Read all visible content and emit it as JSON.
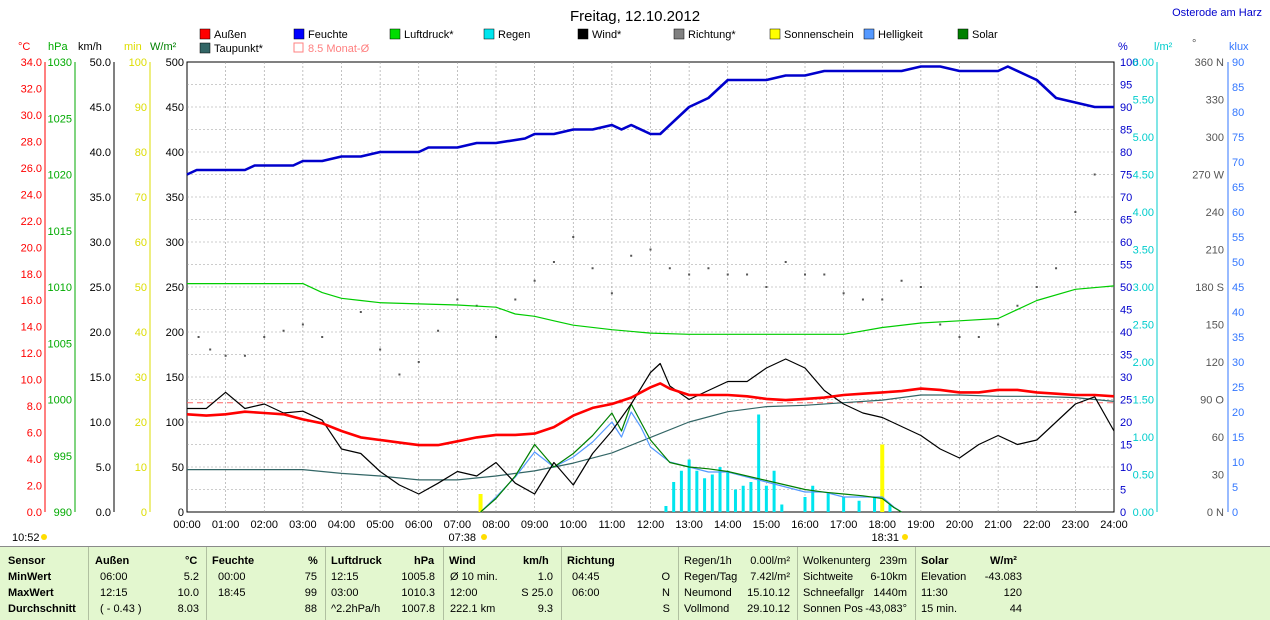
{
  "title": "Freitag, 12.10.2012",
  "location": "Osterode am Harz",
  "legend": [
    {
      "label": "Außen",
      "color": "#ff0000",
      "type": "box"
    },
    {
      "label": "Feuchte",
      "color": "#0000ff",
      "type": "box"
    },
    {
      "label": "Luftdruck*",
      "color": "#00dd00",
      "type": "box"
    },
    {
      "label": "Regen",
      "color": "#00e5ee",
      "type": "box"
    },
    {
      "label": "Wind*",
      "color": "#000000",
      "type": "box"
    },
    {
      "label": "Richtung*",
      "color": "#808080",
      "type": "box"
    },
    {
      "label": "Sonnenschein",
      "color": "#ffff00",
      "type": "box"
    },
    {
      "label": "Helligkeit",
      "color": "#5599ff",
      "type": "box"
    },
    {
      "label": "Solar",
      "color": "#008000",
      "type": "box"
    },
    {
      "label": "Taupunkt*",
      "color": "#336666",
      "type": "box"
    },
    {
      "label": "8.5 Monat-Ø",
      "color": "#ff8080",
      "type": "outline"
    }
  ],
  "axis_units": {
    "temp": "°C",
    "pressure": "hPa",
    "wind": "km/h",
    "sun": "min",
    "solar": "W/m²",
    "humidity": "%",
    "rain": "l/m²",
    "direction": "°",
    "brightness": "klux"
  },
  "axes": {
    "temp_ticks": [
      "34.0",
      "32.0",
      "30.0",
      "28.0",
      "26.0",
      "24.0",
      "22.0",
      "20.0",
      "18.0",
      "16.0",
      "14.0",
      "12.0",
      "10.0",
      "8.0",
      "6.0",
      "4.0",
      "2.0",
      "0.0"
    ],
    "pressure_ticks": [
      "1030",
      "1025",
      "1020",
      "1015",
      "1010",
      "1005",
      "1000",
      "995",
      "990"
    ],
    "wind_ticks": [
      "50.0",
      "45.0",
      "40.0",
      "35.0",
      "30.0",
      "25.0",
      "20.0",
      "15.0",
      "10.0",
      "5.0",
      "0.0"
    ],
    "sun_ticks": [
      "100",
      "90",
      "80",
      "70",
      "60",
      "50",
      "40",
      "30",
      "20",
      "10",
      "0"
    ],
    "solar_ticks": [
      "500",
      "450",
      "400",
      "350",
      "300",
      "250",
      "200",
      "150",
      "100",
      "50",
      "0"
    ],
    "humidity_ticks": [
      "100",
      "95",
      "90",
      "85",
      "80",
      "75",
      "70",
      "65",
      "60",
      "55",
      "50",
      "45",
      "40",
      "35",
      "30",
      "25",
      "20",
      "15",
      "10",
      "5",
      "0"
    ],
    "rain_ticks": [
      "6.00",
      "5.50",
      "5.00",
      "4.50",
      "4.00",
      "3.50",
      "3.00",
      "2.50",
      "2.00",
      "1.50",
      "1.00",
      "0.50",
      "0.00"
    ],
    "direction_ticks": [
      "360 N",
      "330",
      "300",
      "270 W",
      "240",
      "210",
      "180 S",
      "150",
      "120",
      "90 O",
      "60",
      "30",
      "0 N"
    ],
    "brightness_ticks": [
      "90",
      "85",
      "80",
      "75",
      "70",
      "65",
      "60",
      "55",
      "50",
      "45",
      "40",
      "35",
      "30",
      "25",
      "20",
      "15",
      "10",
      "5",
      "0"
    ],
    "x_ticks": [
      "00:00",
      "01:00",
      "02:00",
      "03:00",
      "04:00",
      "05:00",
      "06:00",
      "07:00",
      "08:00",
      "09:00",
      "10:00",
      "11:00",
      "12:00",
      "13:00",
      "14:00",
      "15:00",
      "16:00",
      "17:00",
      "18:00",
      "19:00",
      "20:00",
      "21:00",
      "22:00",
      "23:00",
      "24:00"
    ],
    "sunrise_label": "07:38",
    "sunset_label": "18:31",
    "corner_time": "10:52"
  },
  "chart_data": {
    "type": "line",
    "title": "Freitag, 12.10.2012",
    "x_unit": "hour of day",
    "xlim": [
      0,
      24
    ],
    "monthly_mean_temp": 8.5,
    "series": [
      {
        "name": "Außen",
        "unit": "°C",
        "color": "#ff0000",
        "axis": "temp",
        "ylim": [
          0,
          35
        ],
        "x": [
          0,
          0.5,
          1,
          1.5,
          2,
          2.5,
          3,
          3.5,
          4,
          4.5,
          5,
          5.5,
          6,
          6.5,
          7,
          7.5,
          8,
          8.5,
          9,
          9.5,
          10,
          10.5,
          11,
          11.5,
          12,
          12.25,
          12.5,
          13,
          13.5,
          14,
          14.5,
          15,
          15.5,
          16,
          16.5,
          17,
          17.5,
          18,
          18.5,
          19,
          19.5,
          20,
          20.5,
          21,
          21.5,
          22,
          22.5,
          23,
          23.5,
          24
        ],
        "y": [
          7.6,
          7.5,
          7.6,
          7.8,
          7.7,
          7.6,
          7.2,
          6.9,
          6.3,
          5.8,
          5.6,
          5.4,
          5.2,
          5.2,
          5.5,
          5.8,
          6.0,
          6.0,
          6.1,
          6.6,
          7.5,
          8.1,
          8.4,
          8.9,
          9.7,
          10.0,
          9.6,
          9.1,
          9.1,
          9.1,
          9.0,
          8.8,
          8.7,
          8.8,
          8.9,
          9.1,
          9.2,
          9.3,
          9.4,
          9.6,
          9.5,
          9.3,
          9.3,
          9.5,
          9.5,
          9.3,
          9.2,
          9.1,
          9.1,
          9.0
        ]
      },
      {
        "name": "Taupunkt*",
        "unit": "°C",
        "color": "#336666",
        "axis": "temp",
        "ylim": [
          0,
          35
        ],
        "x": [
          0,
          1,
          2,
          3,
          4,
          5,
          6,
          7,
          8,
          9,
          10,
          11,
          12,
          13,
          14,
          15,
          16,
          17,
          18,
          19,
          20,
          21,
          22,
          23,
          24
        ],
        "y": [
          3.3,
          3.3,
          3.3,
          3.3,
          3.0,
          2.8,
          2.5,
          2.5,
          2.8,
          3.2,
          3.8,
          4.6,
          5.8,
          7.0,
          7.8,
          8.2,
          8.3,
          8.5,
          8.7,
          9.1,
          9.1,
          9.0,
          9.0,
          8.9,
          8.6
        ]
      },
      {
        "name": "Feuchte",
        "unit": "%",
        "color": "#0000cc",
        "axis": "humidity",
        "ylim": [
          0,
          100
        ],
        "x": [
          0,
          0.25,
          1.5,
          1.75,
          2.75,
          3,
          3.5,
          4,
          4.5,
          5,
          6,
          6.25,
          7,
          7.5,
          8,
          8.75,
          9,
          9.5,
          10,
          10.5,
          11,
          11.25,
          11.5,
          12,
          12.25,
          13,
          13.5,
          14,
          14.5,
          15,
          15.5,
          16,
          16.5,
          17,
          17.5,
          18,
          18.5,
          19,
          19.5,
          20,
          20.5,
          21,
          21.25,
          21.75,
          22,
          22.5,
          23,
          23.5,
          24
        ],
        "y": [
          75,
          76,
          76,
          77,
          77,
          78,
          78,
          79,
          79,
          80,
          80,
          81,
          81,
          82,
          82,
          83,
          84,
          84,
          85,
          85,
          86,
          85,
          86,
          84,
          84,
          90,
          92,
          96,
          96,
          96,
          97,
          97,
          98,
          98,
          98,
          98,
          98,
          99,
          99,
          98,
          98,
          98,
          99,
          97,
          96,
          92,
          91,
          90,
          90
        ]
      },
      {
        "name": "Luftdruck*",
        "unit": "hPa",
        "color": "#00cc00",
        "axis": "pressure",
        "ylim": [
          990,
          1030
        ],
        "x": [
          0,
          3,
          3.5,
          4,
          4.5,
          5,
          6,
          7,
          8,
          8.5,
          9,
          9.5,
          10,
          11,
          12,
          13,
          14,
          15,
          16,
          17,
          18,
          19,
          20,
          21,
          22,
          23,
          24
        ],
        "y": [
          1010.3,
          1010.3,
          1009.5,
          1009.0,
          1008.8,
          1008.6,
          1008.5,
          1008.4,
          1008.2,
          1007.6,
          1007.4,
          1007.0,
          1006.6,
          1006.2,
          1005.9,
          1005.8,
          1005.8,
          1005.8,
          1005.8,
          1005.8,
          1006.4,
          1006.8,
          1007.0,
          1007.2,
          1008.8,
          1009.8,
          1010.1
        ]
      },
      {
        "name": "Wind*",
        "unit": "km/h",
        "color": "#000000",
        "axis": "wind",
        "ylim": [
          0,
          50
        ],
        "x": [
          0,
          0.5,
          1,
          1.5,
          2,
          2.5,
          3,
          3.5,
          4,
          4.5,
          5,
          5.5,
          6,
          6.5,
          7,
          7.5,
          8,
          8.5,
          9,
          9.5,
          10,
          10.5,
          11,
          11.5,
          12,
          12.25,
          12.5,
          13,
          13.5,
          14,
          14.5,
          15,
          15.5,
          16,
          16.5,
          17,
          17.5,
          18,
          18.5,
          19,
          19.5,
          20,
          20.5,
          21,
          21.5,
          22,
          22.5,
          23,
          23.5,
          24
        ],
        "y": [
          11.5,
          11.5,
          13.3,
          11.5,
          12.0,
          11.0,
          11.2,
          10.2,
          7.0,
          6.5,
          4.5,
          3.0,
          2.0,
          3.2,
          4.5,
          4.0,
          5.5,
          3.2,
          2.0,
          5.5,
          3.0,
          6.5,
          9.0,
          12.0,
          15.5,
          16.5,
          14.0,
          12.5,
          13.5,
          14.5,
          14.5,
          16.0,
          17.0,
          16.0,
          13.5,
          12.0,
          11.0,
          10.5,
          9.5,
          8.5,
          7.0,
          6.0,
          7.5,
          8.5,
          7.5,
          8.0,
          10.0,
          12.0,
          12.8,
          9.0
        ]
      },
      {
        "name": "Solar",
        "unit": "W/m²",
        "color": "#008000",
        "axis": "solar",
        "ylim": [
          0,
          500
        ],
        "x": [
          7.6,
          8,
          8.5,
          9,
          9.5,
          10,
          10.5,
          11,
          11.25,
          11.5,
          11.75,
          12,
          12.5,
          13,
          13.5,
          14,
          14.5,
          15,
          15.5,
          16,
          16.5,
          17,
          17.5,
          18,
          18.3,
          18.5
        ],
        "y": [
          0,
          15,
          40,
          75,
          50,
          65,
          85,
          110,
          90,
          120,
          100,
          80,
          55,
          50,
          48,
          45,
          40,
          35,
          30,
          25,
          22,
          20,
          18,
          15,
          5,
          0
        ]
      },
      {
        "name": "Helligkeit",
        "unit": "klux",
        "color": "#5599ff",
        "axis": "brightness",
        "ylim": [
          0,
          90
        ],
        "x": [
          7.6,
          8,
          8.5,
          9,
          9.5,
          10,
          10.5,
          11,
          11.25,
          11.5,
          11.75,
          12,
          12.5,
          13,
          13.5,
          14,
          14.5,
          15,
          15.5,
          16,
          16.5,
          17,
          17.5,
          18,
          18.3,
          18.5
        ],
        "y": [
          0,
          3,
          7,
          12,
          9,
          11,
          14,
          18,
          15,
          20,
          17,
          13,
          10,
          9,
          8,
          8,
          7,
          6,
          5,
          4,
          4,
          3,
          3,
          3,
          1,
          0
        ]
      },
      {
        "name": "Richtung*",
        "unit": "°",
        "color": "#555555",
        "axis": "direction",
        "ylim": [
          0,
          360
        ],
        "style": "dots",
        "x": [
          0.3,
          0.6,
          1,
          1.5,
          2,
          2.5,
          3,
          3.5,
          4.5,
          5,
          5.5,
          6,
          6.5,
          7,
          7.5,
          8,
          8.5,
          9,
          9.5,
          10,
          10.5,
          11,
          11.5,
          12,
          12.5,
          13,
          13.5,
          14,
          14.5,
          15,
          15.5,
          16,
          16.5,
          17,
          17.5,
          18,
          18.5,
          19,
          19.5,
          20,
          20.5,
          21,
          21.5,
          22,
          22.5,
          23,
          23.5
        ],
        "y": [
          140,
          130,
          125,
          125,
          140,
          145,
          150,
          140,
          160,
          130,
          110,
          120,
          145,
          170,
          165,
          140,
          170,
          185,
          200,
          220,
          195,
          175,
          205,
          210,
          195,
          190,
          195,
          190,
          190,
          180,
          200,
          190,
          190,
          175,
          170,
          170,
          185,
          180,
          150,
          140,
          140,
          150,
          165,
          180,
          195,
          240,
          270
        ]
      },
      {
        "name": "Regen",
        "unit": "l/m²",
        "color": "#00e5ee",
        "axis": "rain",
        "ylim": [
          0,
          6
        ],
        "style": "bars",
        "x": [
          12.4,
          12.6,
          12.8,
          13.0,
          13.2,
          13.4,
          13.6,
          13.8,
          14.0,
          14.2,
          14.4,
          14.6,
          14.8,
          15.0,
          15.2,
          15.4,
          16.0,
          16.2,
          16.6,
          17.0,
          17.4,
          17.8,
          18.2
        ],
        "y": [
          0.08,
          0.4,
          0.55,
          0.7,
          0.55,
          0.45,
          0.5,
          0.6,
          0.55,
          0.3,
          0.35,
          0.4,
          1.3,
          0.35,
          0.55,
          0.1,
          0.2,
          0.35,
          0.25,
          0.2,
          0.15,
          0.2,
          0.1
        ]
      },
      {
        "name": "Sonnenschein",
        "unit": "min",
        "color": "#ffff00",
        "axis": "sun",
        "ylim": [
          0,
          100
        ],
        "style": "bars",
        "x": [
          7.6,
          18.0
        ],
        "y": [
          4,
          15
        ]
      }
    ]
  },
  "stats": {
    "headers": {
      "sensor": "Sensor",
      "aussen": "Außen",
      "aussen_unit": "°C",
      "feuchte": "Feuchte",
      "feuchte_unit": "%",
      "luftdruck": "Luftdruck",
      "luftdruck_unit": "hPa",
      "wind": "Wind",
      "wind_unit": "km/h",
      "richtung": "Richtung",
      "solar": "Solar",
      "solar_unit": "W/m²"
    },
    "rows": [
      {
        "label": "MinWert",
        "aussen_t": "06:00",
        "aussen_v": "5.2",
        "feuchte_t": "00:00",
        "feuchte_v": "75",
        "luft_t": "12:15",
        "luft_v": "1005.8",
        "wind_t": "Ø 10 min.",
        "wind_v": "1.0",
        "richt_t": "04:45",
        "richt_v": "O"
      },
      {
        "label": "MaxWert",
        "aussen_t": "12:15",
        "aussen_v": "10.0",
        "feuchte_t": "18:45",
        "feuchte_v": "99",
        "luft_t": "03:00",
        "luft_v": "1010.3",
        "wind_t": "12:00",
        "wind_v": "S 25.0",
        "richt_t": "06:00",
        "richt_v": "N"
      },
      {
        "label": "Durchschnitt",
        "aussen_t": "( - 0.43 )",
        "aussen_v": "8.03",
        "feuchte_t": "",
        "feuchte_v": "88",
        "luft_t": "^2.2hPa/h",
        "luft_v": "1007.8",
        "wind_t": "222.1 km",
        "wind_v": "9.3",
        "richt_t": "",
        "richt_v": "S"
      }
    ],
    "rain": [
      {
        "label": "Regen/1h",
        "value": "0.00l/m²"
      },
      {
        "label": "Regen/Tag",
        "value": "7.42l/m²"
      },
      {
        "label": "Neumond",
        "value": "15.10.12"
      },
      {
        "label": "Vollmond",
        "value": "29.10.12"
      }
    ],
    "misc": [
      {
        "label": "Wolkenunterg",
        "value": "239m"
      },
      {
        "label": "Sichtweite",
        "value": "6-10km"
      },
      {
        "label": "Schneefallgr",
        "value": "1440m"
      },
      {
        "label": "Sonnen Pos",
        "value": "-43,083°"
      }
    ],
    "solar": [
      {
        "label": "Elevation",
        "value": "-43.083"
      },
      {
        "label": "11:30",
        "value": "120"
      },
      {
        "label": "15 min.",
        "value": "44"
      }
    ]
  }
}
